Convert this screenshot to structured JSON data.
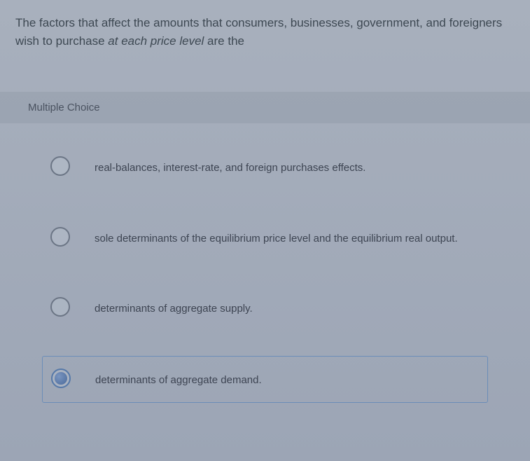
{
  "question": {
    "prefix": "The factors that affect the amounts that consumers, businesses, government, and foreigners wish to purchase ",
    "italic": "at each price level",
    "suffix": " are the"
  },
  "section_label": "Multiple Choice",
  "options": [
    {
      "text": "real-balances, interest-rate, and foreign purchases effects.",
      "selected": false
    },
    {
      "text": "sole determinants of the equilibrium price level and the equilibrium real output.",
      "selected": false
    },
    {
      "text": "determinants of aggregate supply.",
      "selected": false
    },
    {
      "text": "determinants of aggregate demand.",
      "selected": true
    }
  ],
  "colors": {
    "background_top": "#a8b0bd",
    "background_bottom": "#9ca5b5",
    "text_primary": "#3d4852",
    "text_option": "#3d4452",
    "radio_border": "#6b7585",
    "radio_fill": "#4a6a9a",
    "selected_border": "#6b8db8"
  }
}
